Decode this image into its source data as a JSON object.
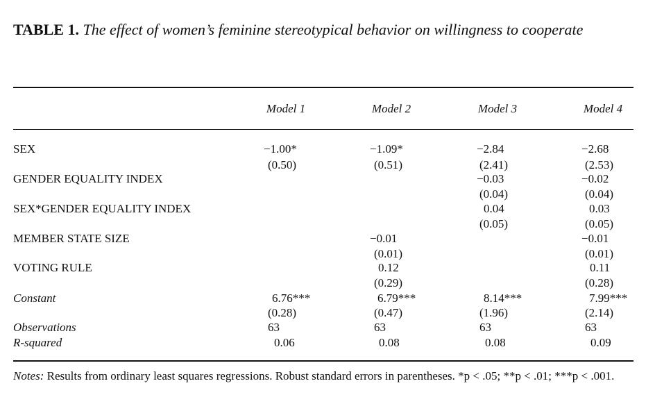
{
  "caption": {
    "label": "TABLE 1.",
    "title": "The effect of women’s feminine stereotypical behavior on willingness to cooperate"
  },
  "columns": [
    "Model 1",
    "Model 2",
    "Model 3",
    "Model 4"
  ],
  "rows": {
    "sex": {
      "label": "SEX",
      "coef": [
        "−1.00*",
        "−1.09*",
        "−2.84",
        "−2.68"
      ],
      "se": [
        "(0.50)",
        "(0.51)",
        "(2.41)",
        "(2.53)"
      ]
    },
    "gei": {
      "label": "GENDER EQUALITY INDEX",
      "coef": [
        "",
        "",
        "−0.03",
        "−0.02"
      ],
      "se": [
        "",
        "",
        "(0.04)",
        "(0.04)"
      ]
    },
    "sex_gei": {
      "label": "SEX*GENDER EQUALITY INDEX",
      "coef": [
        "",
        "",
        "0.04",
        "0.03"
      ],
      "se": [
        "",
        "",
        "(0.05)",
        "(0.05)"
      ]
    },
    "mss": {
      "label": "MEMBER STATE SIZE",
      "coef": [
        "",
        "−0.01",
        "",
        "−0.01"
      ],
      "se": [
        "",
        "(0.01)",
        "",
        "(0.01)"
      ]
    },
    "vr": {
      "label": "VOTING RULE",
      "coef": [
        "",
        "0.12",
        "",
        "0.11"
      ],
      "se": [
        "",
        "(0.29)",
        "",
        "(0.28)"
      ]
    },
    "constant": {
      "label": "Constant",
      "coef": [
        "6.76***",
        "6.79***",
        "8.14***",
        "7.99***"
      ],
      "se": [
        "(0.28)",
        "(0.47)",
        "(1.96)",
        "(2.14)"
      ]
    },
    "obs": {
      "label": "Observations",
      "values": [
        "63",
        "63",
        "63",
        "63"
      ]
    },
    "r2": {
      "label": "R-squared",
      "values": [
        "0.06",
        "0.08",
        "0.08",
        "0.09"
      ]
    }
  },
  "notes": {
    "lead": "Notes:",
    "text": "Results from ordinary least squares regressions. Robust standard errors in parentheses. *p < .05; **p < .01; ***p < .001."
  }
}
